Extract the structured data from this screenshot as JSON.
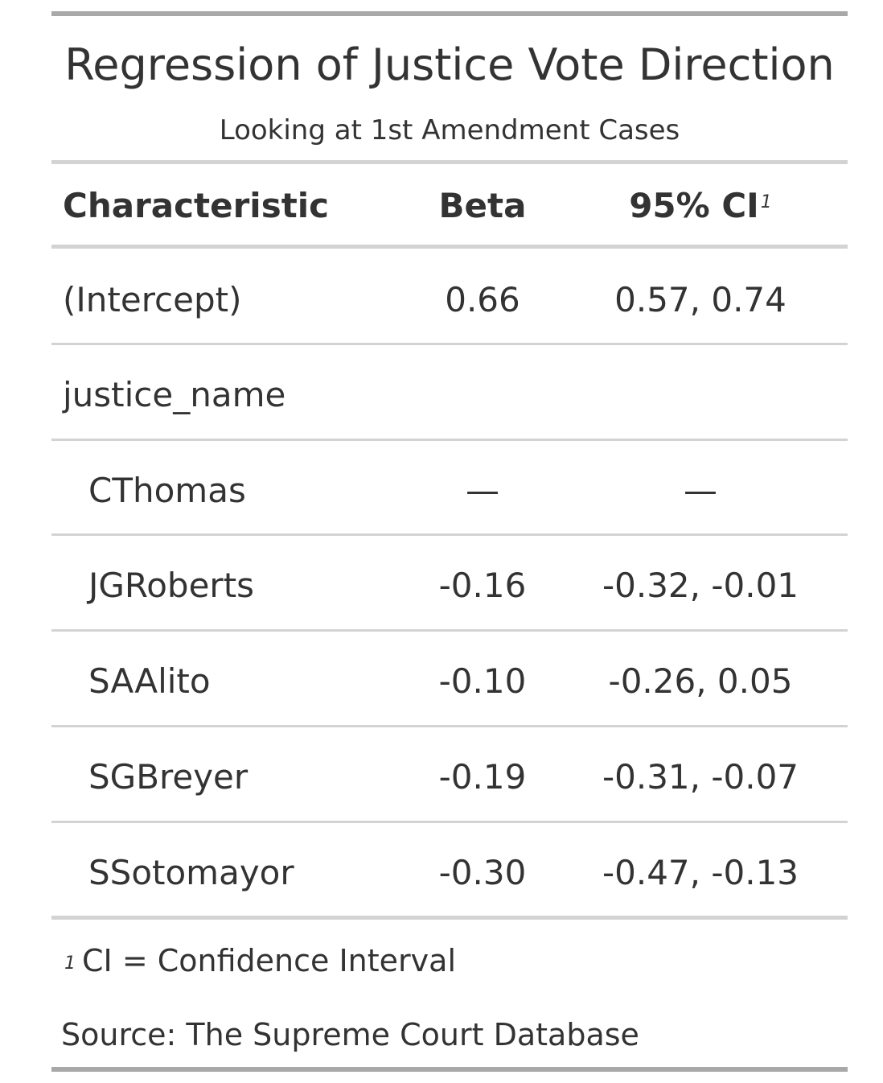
{
  "header": {
    "title": "Regression of Justice Vote Direction",
    "subtitle": "Looking at 1st Amendment Cases"
  },
  "columns": {
    "characteristic": "Characteristic",
    "beta": "Beta",
    "ci": "95% CI",
    "ci_footnote_mark": "1"
  },
  "rows": [
    {
      "label": "(Intercept)",
      "beta": "0.66",
      "ci": "0.57, 0.74"
    },
    {
      "label": "justice_name",
      "beta": "",
      "ci": ""
    },
    {
      "label": "CThomas",
      "beta": "—",
      "ci": "—"
    },
    {
      "label": "JGRoberts",
      "beta": "-0.16",
      "ci": "-0.32, -0.01"
    },
    {
      "label": "SAAlito",
      "beta": "-0.10",
      "ci": "-0.26, 0.05"
    },
    {
      "label": "SGBreyer",
      "beta": "-0.19",
      "ci": "-0.31, -0.07"
    },
    {
      "label": "SSotomayor",
      "beta": "-0.30",
      "ci": "-0.47, -0.13"
    }
  ],
  "footer": {
    "footnote_mark": "1",
    "footnote_text": "CI = Confidence Interval",
    "source": "Source: The Supreme Court Database"
  }
}
